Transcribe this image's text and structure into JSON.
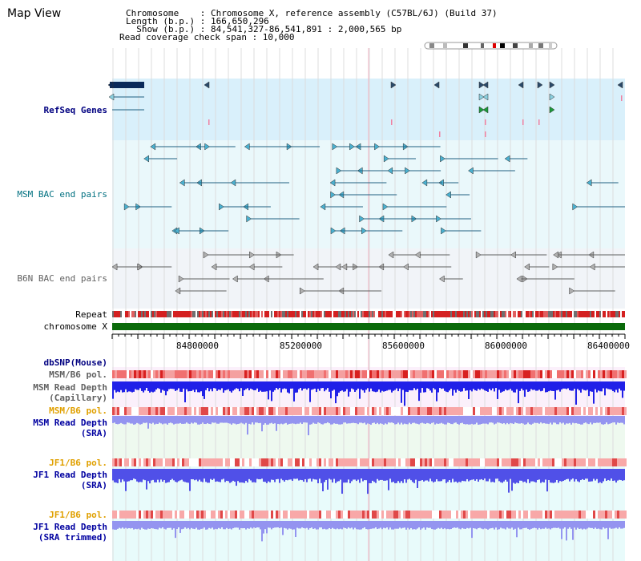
{
  "app": {
    "title": "Map View"
  },
  "header": {
    "lines": [
      "Chromosome    : Chromosome X, reference assembly (C57BL/6J) (Build 37)",
      "Length (b.p.) : 166,650,296",
      "  Show (b.p.) : 84,541,327-86,541,891 : 2,000,565 bp",
      "Read coverage check span : 10,000"
    ]
  },
  "colors": {
    "refseq_bg": "#d9f0fb",
    "msm_bac_bg": "#eaf8fb",
    "b6n_bac_bg": "#f1f4f8",
    "msm_cov_bg": "#fbf0fb",
    "sra_bg": "#eef9ef",
    "jf1_bg": "#e8fbfb",
    "chromosome_bar": "#0a6a0a",
    "label_navy": "#000080",
    "label_teal": "#007080",
    "label_gray": "#505050",
    "label_orange": "#e0a000",
    "depth_blue": "#2020e8",
    "depth_light": "#9494f0",
    "pol_red": "#f08080"
  },
  "tracks": {
    "refseq": "RefSeq Genes",
    "msm_bac": "MSM BAC end pairs",
    "b6n_bac": "B6N BAC end pairs",
    "repeat": "Repeat",
    "chromosome": "chromosome X",
    "dbsnp": "dbSNP(Mouse)",
    "msm_b6_pol": "MSM/B6 pol.",
    "msm_depth_cap_1": "MSM Read Depth",
    "msm_depth_cap_2": "(Capillary)",
    "msm_b6_pol_2": "MSM/B6 pol.",
    "msm_depth_sra_1": "MSM Read Depth",
    "msm_depth_sra_2": "(SRA)",
    "jf1_b6_pol": "JF1/B6 pol.",
    "jf1_depth_sra_1": "JF1 Read Depth",
    "jf1_depth_sra_2": "(SRA)",
    "jf1_b6_pol_2": "JF1/B6 pol.",
    "jf1_depth_trim_1": "JF1 Read Depth",
    "jf1_depth_trim_2": "(SRA trimmed)"
  },
  "axis": {
    "ticks": [
      "84800000",
      "85200000",
      "85600000",
      "86000000",
      "86400000"
    ]
  }
}
